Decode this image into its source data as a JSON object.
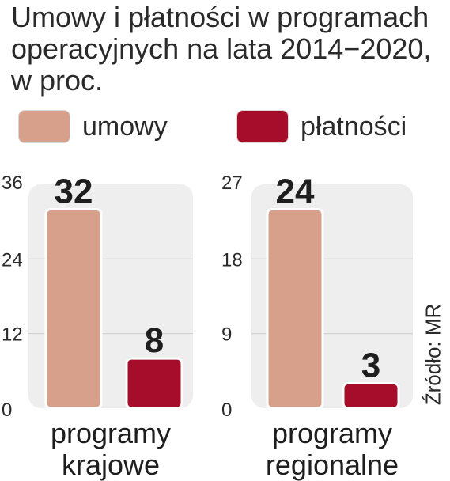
{
  "title": "Umowy i płatności w programach operacyjnych na lata 2014−2020, w proc.",
  "source": "Źródło: MR",
  "colors": {
    "umowy": "#d7a08a",
    "platnosci": "#a50d2a",
    "panel": "#eeeeee",
    "grid": "#cfcfcf"
  },
  "legend": [
    {
      "label": "umowy",
      "color": "#d7a08a"
    },
    {
      "label": "płatności",
      "color": "#a50d2a"
    }
  ],
  "chart_data": [
    {
      "type": "bar",
      "category": "programy krajowe",
      "category_lines": [
        "programy",
        "krajowe"
      ],
      "series": [
        {
          "name": "umowy",
          "values": [
            32
          ]
        },
        {
          "name": "płatności",
          "values": [
            8
          ]
        }
      ],
      "ylim": [
        0,
        36
      ],
      "yticks": [
        0,
        12,
        24,
        36
      ],
      "grid": true
    },
    {
      "type": "bar",
      "category": "programy regionalne",
      "category_lines": [
        "programy",
        "regionalne"
      ],
      "series": [
        {
          "name": "umowy",
          "values": [
            24
          ]
        },
        {
          "name": "płatności",
          "values": [
            3
          ]
        }
      ],
      "ylim": [
        0,
        27
      ],
      "yticks": [
        0,
        9,
        18,
        27
      ],
      "grid": true
    }
  ]
}
